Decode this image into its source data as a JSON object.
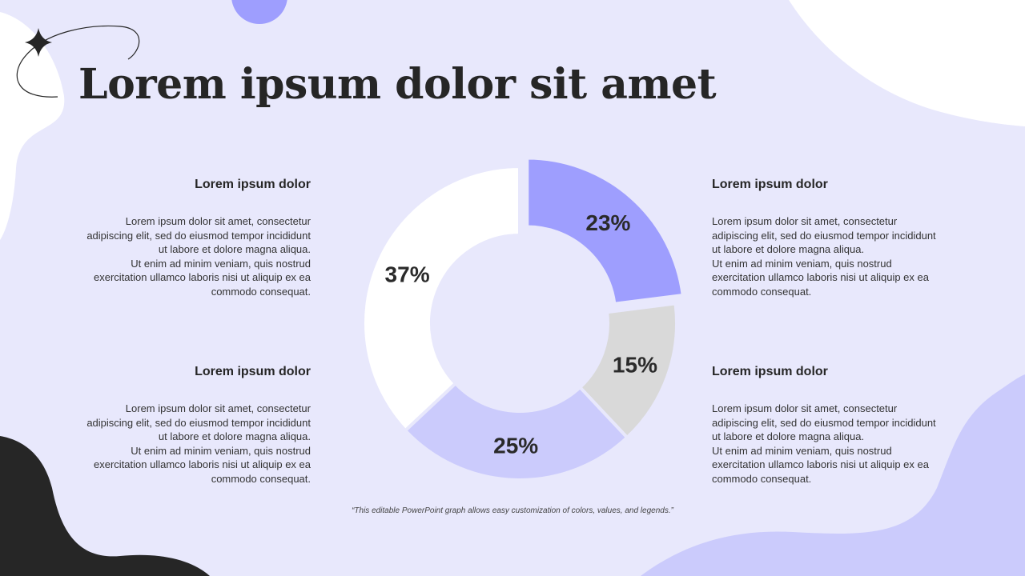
{
  "slide": {
    "title": "Lorem ipsum dolor sit amet",
    "footnote": "“This editable PowerPoint graph allows easy customization of colors, values, and legends.”"
  },
  "blocks": [
    {
      "heading": "Lorem ipsum dolor",
      "body": "Lorem ipsum dolor sit amet, consectetur\nadipiscing elit, sed do eiusmod tempor incididunt\nut labore et dolore magna aliqua.\nUt enim ad minim veniam, quis nostrud\nexercitation ullamco laboris nisi ut aliquip ex ea\ncommodo consequat."
    },
    {
      "heading": "Lorem ipsum dolor",
      "body": "Lorem ipsum dolor sit amet, consectetur\nadipiscing elit, sed do eiusmod tempor incididunt\nut labore et dolore magna aliqua.\nUt enim ad minim veniam, quis nostrud\nexercitation ullamco laboris nisi ut aliquip ex ea\ncommodo consequat."
    },
    {
      "heading": "Lorem ipsum dolor",
      "body": "Lorem ipsum dolor sit amet, consectetur\nadipiscing elit, sed do eiusmod tempor incididunt\nut labore et dolore magna aliqua.\nUt enim ad minim veniam, quis nostrud\nexercitation ullamco laboris nisi ut aliquip ex ea\ncommodo consequat."
    },
    {
      "heading": "Lorem ipsum dolor",
      "body": "Lorem ipsum dolor sit amet, consectetur\nadipiscing elit, sed do eiusmod tempor incididunt\nut labore et dolore magna aliqua.\nUt enim ad minim veniam, quis nostrud\nexercitation ullamco laboris nisi ut aliquip ex ea\ncommodo consequat."
    }
  ],
  "colors": {
    "background": "#e8e8fc",
    "accent": "#9e9efe",
    "lavender": "#cbcbfc",
    "gray": "#d9d9d9",
    "white": "#ffffff",
    "dark": "#262626"
  },
  "chart_data": {
    "type": "pie",
    "style": "donut",
    "categories": [
      "",
      "",
      "",
      ""
    ],
    "values": [
      23,
      15,
      25,
      37
    ],
    "labels": [
      "23%",
      "15%",
      "25%",
      "37%"
    ],
    "colors": [
      "#9e9efe",
      "#d9d9d9",
      "#cbcbfc",
      "#ffffff"
    ],
    "exploded": [
      true,
      false,
      false,
      false
    ],
    "start": "top",
    "direction": "clockwise",
    "legend": "none"
  }
}
